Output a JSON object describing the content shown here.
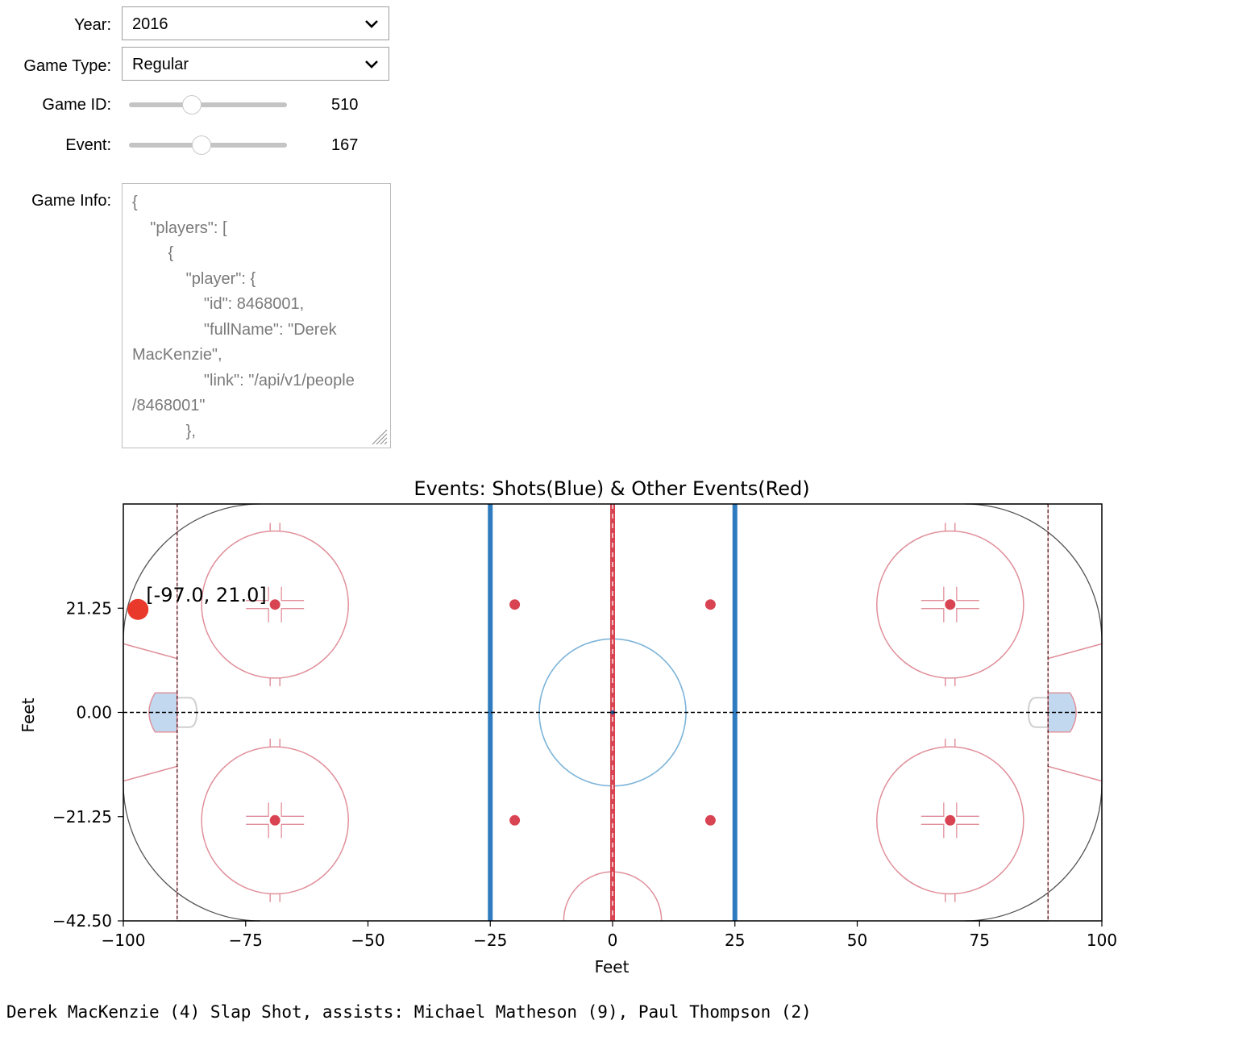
{
  "controls": {
    "year": {
      "label": "Year:",
      "value": "2016"
    },
    "game_type": {
      "label": "Game Type:",
      "value": "Regular"
    },
    "game_id": {
      "label": "Game ID:",
      "value": "510",
      "fraction": 0.4
    },
    "event": {
      "label": "Event:",
      "value": "167",
      "fraction": 0.46
    },
    "game_info": {
      "label": "Game Info:",
      "lines": [
        "{",
        "    \"players\": [",
        "        {",
        "            \"player\": {",
        "                \"id\": 8468001,",
        "                \"fullName\": \"Derek",
        "MacKenzie\",",
        "                \"link\": \"/api/v1/people",
        "/8468001\"",
        "            },"
      ]
    }
  },
  "chart_data": {
    "type": "scatter",
    "title": "Events: Shots(Blue)  &  Other Events(Red)",
    "xlabel": "Feet",
    "ylabel": "Feet",
    "xlim": [
      -100,
      100
    ],
    "ylim": [
      -42.5,
      42.5
    ],
    "x_ticks": [
      "−100",
      "−75",
      "−50",
      "−25",
      "0",
      "25",
      "50",
      "75",
      "100"
    ],
    "x_tick_values": [
      -100,
      -75,
      -50,
      -25,
      0,
      25,
      50,
      75,
      100
    ],
    "y_ticks": [
      "21.25",
      "0.00",
      "−21.25",
      "−42.50"
    ],
    "y_tick_values": [
      21.25,
      0,
      -21.25,
      -42.5
    ],
    "points": [
      {
        "x": -97.0,
        "y": 21.0,
        "label": "[-97.0, 21.0]",
        "color": "#e8392b"
      }
    ],
    "colors": {
      "red_line": "#d94452",
      "blue_line": "#2f7bbf",
      "circle_red": "#e08f9a",
      "center_circle": "#7db4d9",
      "crease": "#c2d8ee"
    }
  },
  "status_text": "Derek MacKenzie (4) Slap Shot, assists: Michael Matheson (9), Paul Thompson (2)"
}
